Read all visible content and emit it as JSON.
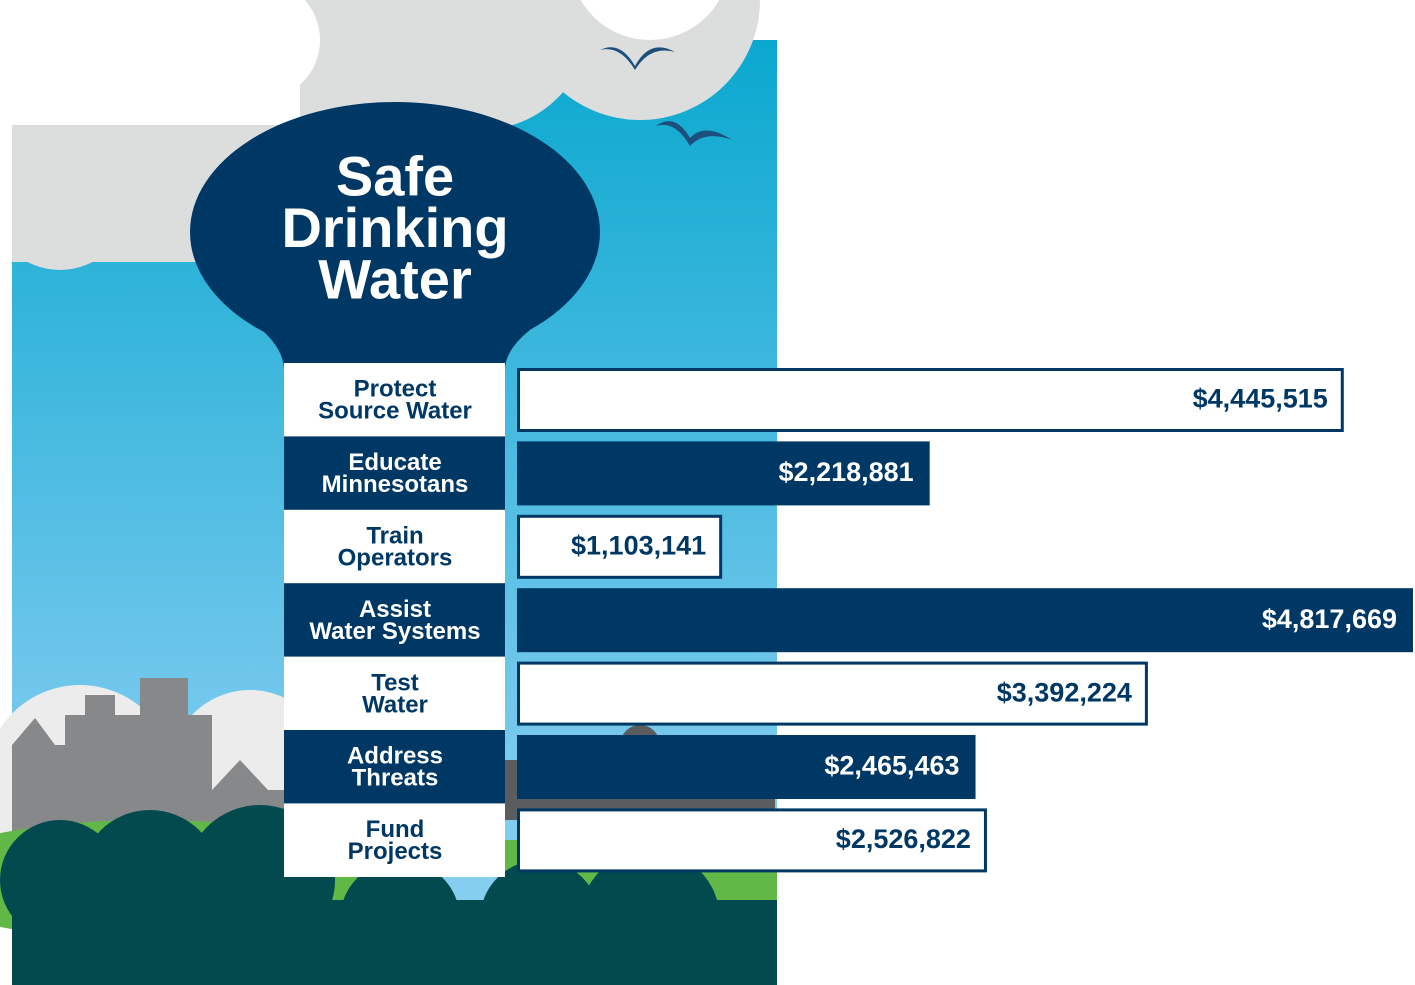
{
  "chart_data": {
    "type": "bar",
    "title": "Safe\nDrinking\nWater",
    "categories": [
      "Protect\nSource Water",
      "Educate\nMinnesotans",
      "Train\nOperators",
      "Assist\nWater Systems",
      "Test\nWater",
      "Address\nThreats",
      "Fund\nProjects"
    ],
    "values": [
      4445515,
      2218881,
      1103141,
      4817669,
      3392224,
      2465463,
      2526822
    ],
    "value_labels": [
      "$4,445,515",
      "$2,218,881",
      "$1,103,141",
      "$4,817,669",
      "$3,392,224",
      "$2,465,463",
      "$2,526,822"
    ],
    "colors": [
      "#ffffff",
      "#003865",
      "#ffffff",
      "#003865",
      "#ffffff",
      "#003865",
      "#ffffff"
    ]
  }
}
